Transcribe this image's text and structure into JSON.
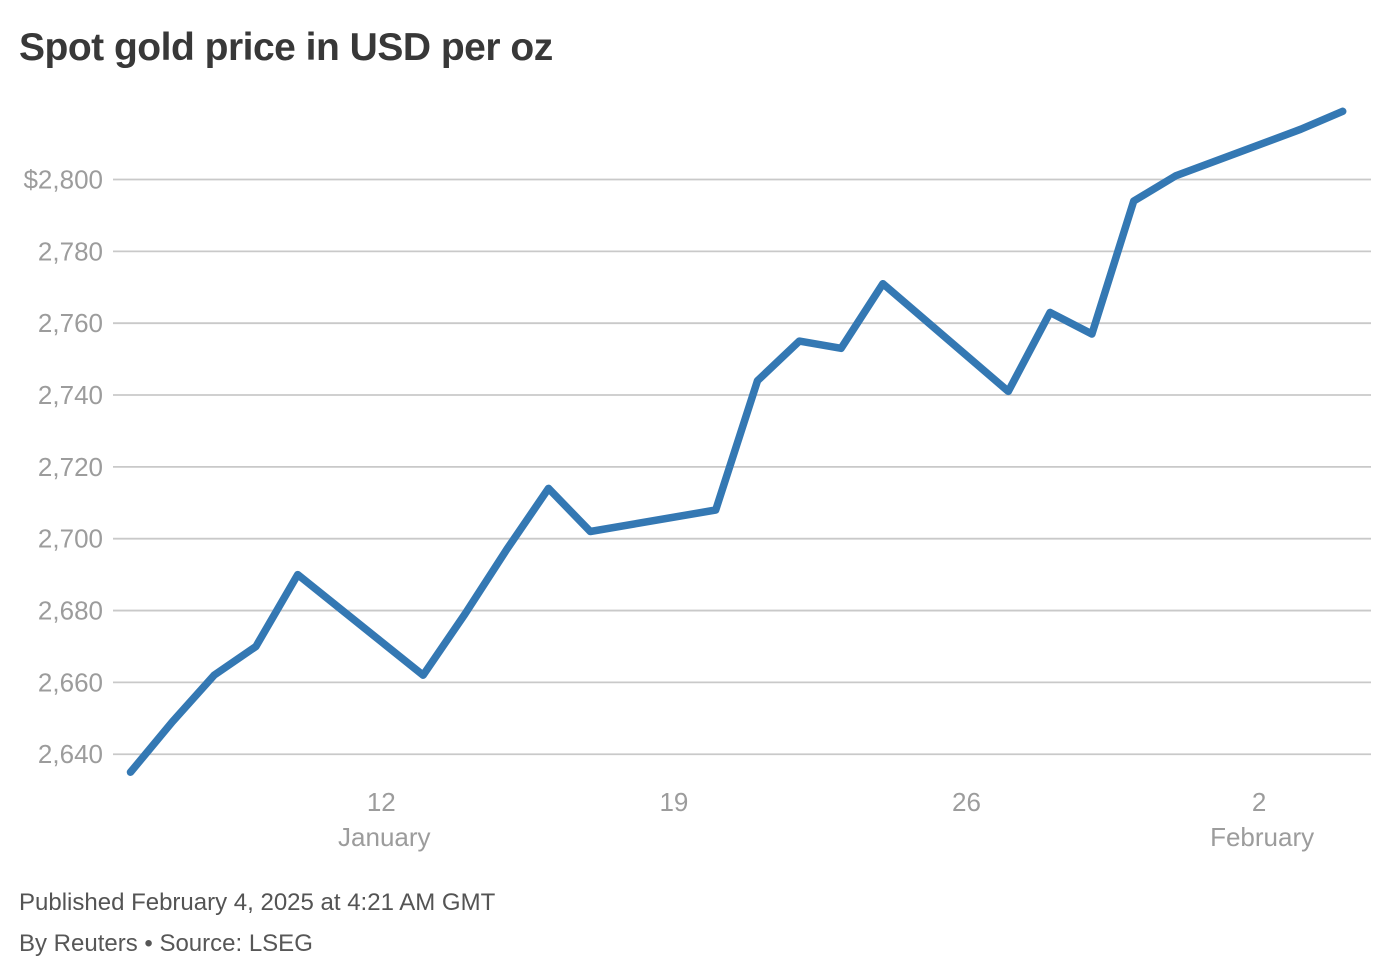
{
  "page": {
    "footer": {
      "published": "Published February 4, 2025 at 4:21 AM GMT",
      "byline": "By Reuters • Source: LSEG"
    }
  },
  "chart_data": {
    "type": "line",
    "title": "Spot gold price in USD per oz",
    "currency": "USD",
    "unit": "per oz",
    "legend_position": "none",
    "grid": "horizontal-only",
    "colors": {
      "line": "#3478b3",
      "gridline": "#c9c9c9",
      "axis_label": "#9c9c9c",
      "title": "#383838",
      "footer_text": "#545454",
      "background": "#ffffff"
    },
    "y_axis": {
      "range": [
        2630,
        2825
      ],
      "ticks": [
        {
          "label": "$2,800",
          "value": 2800
        },
        {
          "label": "2,780",
          "value": 2780
        },
        {
          "label": "2,760",
          "value": 2760
        },
        {
          "label": "2,740",
          "value": 2740
        },
        {
          "label": "2,720",
          "value": 2720
        },
        {
          "label": "2,700",
          "value": 2700
        },
        {
          "label": "2,680",
          "value": 2680
        },
        {
          "label": "2,660",
          "value": 2660
        },
        {
          "label": "2,640",
          "value": 2640
        }
      ]
    },
    "x_axis": {
      "start_date": "Jan 6",
      "end_date": "Feb 4",
      "ticks": [
        {
          "label": "12",
          "month": "January",
          "day": 6
        },
        {
          "label": "19",
          "month": "",
          "day": 13
        },
        {
          "label": "26",
          "month": "",
          "day": 20
        },
        {
          "label": "2",
          "month": "February",
          "day": 27
        }
      ]
    },
    "series": [
      {
        "name": "Spot gold price",
        "points": [
          {
            "x": "Jan 6",
            "day": 0,
            "y": 2635
          },
          {
            "x": "Jan 7",
            "day": 1,
            "y": 2649
          },
          {
            "x": "Jan 8",
            "day": 2,
            "y": 2662
          },
          {
            "x": "Jan 9",
            "day": 3,
            "y": 2670
          },
          {
            "x": "Jan 10",
            "day": 4,
            "y": 2690
          },
          {
            "x": "Jan 13",
            "day": 7,
            "y": 2662
          },
          {
            "x": "Jan 14",
            "day": 8,
            "y": 2679
          },
          {
            "x": "Jan 15",
            "day": 9,
            "y": 2697
          },
          {
            "x": "Jan 16",
            "day": 10,
            "y": 2714
          },
          {
            "x": "Jan 17",
            "day": 11,
            "y": 2702
          },
          {
            "x": "Jan 20",
            "day": 14,
            "y": 2708
          },
          {
            "x": "Jan 21",
            "day": 15,
            "y": 2744
          },
          {
            "x": "Jan 22",
            "day": 16,
            "y": 2755
          },
          {
            "x": "Jan 23",
            "day": 17,
            "y": 2753
          },
          {
            "x": "Jan 24",
            "day": 18,
            "y": 2771
          },
          {
            "x": "Jan 27",
            "day": 21,
            "y": 2741
          },
          {
            "x": "Jan 28",
            "day": 22,
            "y": 2763
          },
          {
            "x": "Jan 29",
            "day": 23,
            "y": 2757
          },
          {
            "x": "Jan 30",
            "day": 24,
            "y": 2794
          },
          {
            "x": "Jan 31",
            "day": 25,
            "y": 2801
          },
          {
            "x": "Feb 3",
            "day": 28,
            "y": 2814
          },
          {
            "x": "Feb 4",
            "day": 29,
            "y": 2819
          }
        ]
      }
    ]
  }
}
